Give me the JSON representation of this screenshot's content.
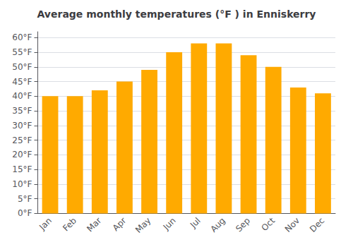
{
  "chart_data": {
    "type": "bar",
    "title": "Average monthly temperatures (°F ) in Enniskerry",
    "categories": [
      "Jan",
      "Feb",
      "Mar",
      "Apr",
      "May",
      "Jun",
      "Jul",
      "Aug",
      "Sep",
      "Oct",
      "Nov",
      "Dec"
    ],
    "values": [
      40,
      40,
      42,
      45,
      49,
      55,
      58,
      58,
      54,
      50,
      43,
      41
    ],
    "color": "#FFAA00",
    "ylim": [
      0,
      62
    ],
    "yticks": [
      {
        "value": 0,
        "label": "0°F"
      },
      {
        "value": 5,
        "label": "5°F"
      },
      {
        "value": 10,
        "label": "10°F"
      },
      {
        "value": 15,
        "label": "15°F"
      },
      {
        "value": 20,
        "label": "20°F"
      },
      {
        "value": 25,
        "label": "25°F"
      },
      {
        "value": 30,
        "label": "30°F"
      },
      {
        "value": 35,
        "label": "35°F"
      },
      {
        "value": 40,
        "label": "40°F"
      },
      {
        "value": 45,
        "label": "45°F"
      },
      {
        "value": 50,
        "label": "50°F"
      },
      {
        "value": 55,
        "label": "55°F"
      },
      {
        "value": 60,
        "label": "60°F"
      }
    ],
    "grid": true
  }
}
